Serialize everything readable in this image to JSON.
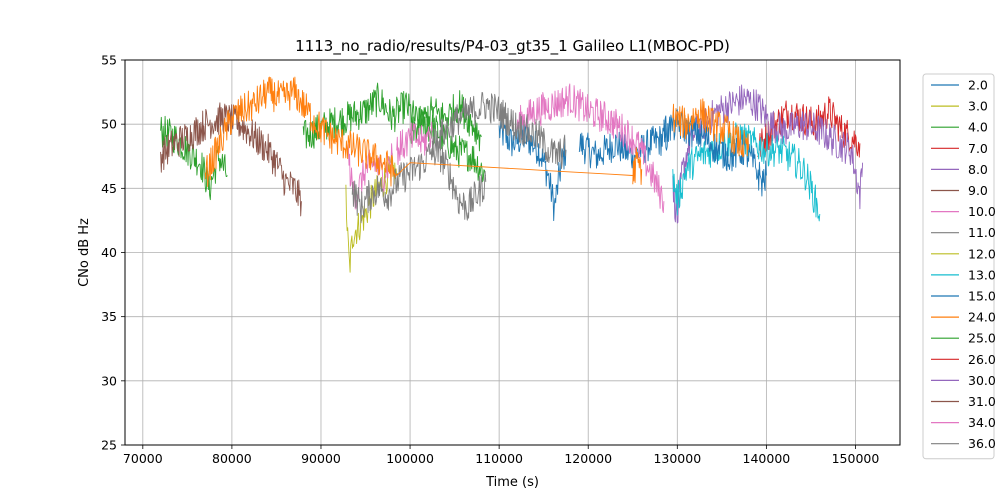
{
  "chart_data": {
    "type": "line",
    "title": "1113_no_radio/results/P4-03_gt35_1 Galileo L1(MBOC-PD)",
    "xlabel": "Time (s)",
    "ylabel": "CNo dB Hz",
    "xlim": [
      68000,
      155000
    ],
    "ylim": [
      25,
      55
    ],
    "xticks": [
      70000,
      80000,
      90000,
      100000,
      110000,
      120000,
      130000,
      140000,
      150000
    ],
    "yticks": [
      25,
      30,
      35,
      40,
      45,
      50,
      55
    ],
    "grid": true,
    "legend_position": "outside-right",
    "series": [
      {
        "name": "2.0",
        "color": "#1f77b4",
        "segments": [
          [
            [
              110000,
              49.5
            ],
            [
              111500,
              48.5
            ],
            [
              113000,
              49
            ],
            [
              114500,
              48
            ],
            [
              115500,
              46
            ],
            [
              116200,
              43.5
            ],
            [
              117000,
              47
            ],
            [
              117500,
              48
            ]
          ],
          [
            [
              119000,
              48.5
            ],
            [
              121000,
              47.5
            ],
            [
              123000,
              48.5
            ],
            [
              125000,
              47.5
            ],
            [
              127000,
              48.5
            ],
            [
              129000,
              49
            ]
          ]
        ]
      },
      {
        "name": "3.0",
        "color": "#bcbd22",
        "segments": [
          [
            [
              92800,
              44.5
            ],
            [
              93000,
              41
            ],
            [
              93200,
              38.8
            ],
            [
              93600,
              41.5
            ],
            [
              94200,
              42
            ],
            [
              95000,
              43
            ],
            [
              96000,
              44.5
            ],
            [
              97000,
              45.5
            ],
            [
              98000,
              46.5
            ],
            [
              98500,
              46
            ]
          ]
        ]
      },
      {
        "name": "4.0",
        "color": "#2ca02c",
        "segments": [
          [
            [
              72000,
              49.5
            ],
            [
              73500,
              49
            ],
            [
              75000,
              48
            ],
            [
              76500,
              47
            ],
            [
              77500,
              45
            ],
            [
              78500,
              47.5
            ],
            [
              79500,
              46
            ]
          ],
          [
            [
              88000,
              49
            ],
            [
              89500,
              49.5
            ],
            [
              91000,
              50
            ],
            [
              93000,
              50.5
            ],
            [
              95000,
              51
            ],
            [
              96500,
              52
            ],
            [
              98000,
              50.5
            ],
            [
              99500,
              51.5
            ],
            [
              101000,
              50
            ],
            [
              103000,
              49.5
            ],
            [
              105000,
              48
            ],
            [
              107000,
              47.5
            ],
            [
              108500,
              46
            ]
          ]
        ]
      },
      {
        "name": "7.0",
        "color": "#d62728",
        "segments": [
          [
            [
              139000,
              48
            ],
            [
              140000,
              49
            ],
            [
              141000,
              50
            ],
            [
              142500,
              51
            ],
            [
              144000,
              50.5
            ],
            [
              145500,
              50
            ],
            [
              147000,
              51
            ],
            [
              148500,
              49.5
            ],
            [
              149500,
              49
            ],
            [
              150500,
              48.5
            ]
          ]
        ]
      },
      {
        "name": "8.0",
        "color": "#9467bd",
        "segments": [
          [
            [
              129500,
              45
            ],
            [
              130000,
              42.5
            ],
            [
              130500,
              46
            ],
            [
              131500,
              49
            ],
            [
              133000,
              50
            ],
            [
              134500,
              51
            ],
            [
              136000,
              51.5
            ],
            [
              137500,
              52
            ],
            [
              139000,
              51.5
            ],
            [
              140500,
              50
            ],
            [
              142000,
              49.5
            ],
            [
              144000,
              50
            ],
            [
              146000,
              49.5
            ],
            [
              148000,
              48.5
            ],
            [
              149500,
              48
            ],
            [
              150500,
              44.5
            ],
            [
              150800,
              47
            ]
          ]
        ]
      },
      {
        "name": "9.0",
        "color": "#8c564b",
        "segments": [
          [
            [
              72000,
              47.5
            ],
            [
              73500,
              48.5
            ],
            [
              75000,
              49
            ],
            [
              77000,
              50
            ],
            [
              79000,
              50.5
            ],
            [
              81000,
              50
            ],
            [
              82500,
              49
            ],
            [
              84000,
              48
            ],
            [
              85000,
              47
            ],
            [
              86000,
              45.5
            ],
            [
              87000,
              45
            ],
            [
              87800,
              44
            ]
          ]
        ]
      },
      {
        "name": "10.0",
        "color": "#e377c2",
        "segments": [
          [
            [
              93000,
              48
            ],
            [
              93500,
              45
            ],
            [
              94000,
              44.5
            ],
            [
              95000,
              46.5
            ],
            [
              96000,
              47
            ],
            [
              97000,
              46
            ],
            [
              98000,
              47.5
            ]
          ],
          [
            [
              112000,
              50
            ],
            [
              114000,
              51
            ],
            [
              116000,
              51.5
            ],
            [
              118000,
              52
            ],
            [
              120000,
              51
            ],
            [
              122000,
              50.5
            ],
            [
              124000,
              49.5
            ],
            [
              125500,
              48.5
            ],
            [
              126500,
              47
            ],
            [
              127500,
              45.5
            ],
            [
              128500,
              44
            ]
          ]
        ]
      },
      {
        "name": "11.0",
        "color": "#7f7f7f",
        "segments": [
          [
            [
              93500,
              45
            ],
            [
              94500,
              43.5
            ],
            [
              95500,
              44.5
            ],
            [
              96500,
              45
            ],
            [
              97500,
              44.5
            ],
            [
              98500,
              45.5
            ],
            [
              99500,
              46
            ],
            [
              100500,
              46.5
            ],
            [
              101500,
              47
            ],
            [
              102500,
              48
            ],
            [
              103500,
              47.5
            ],
            [
              104500,
              46
            ],
            [
              105500,
              44
            ],
            [
              106500,
              43.5
            ],
            [
              107500,
              44.5
            ],
            [
              108500,
              45.5
            ]
          ]
        ]
      },
      {
        "name": "12.0",
        "color": "#bcbd22",
        "segments": []
      },
      {
        "name": "13.0",
        "color": "#17becf",
        "segments": [
          [
            [
              129500,
              46
            ],
            [
              130000,
              44
            ],
            [
              131000,
              46.5
            ],
            [
              132500,
              47.5
            ],
            [
              134000,
              48
            ],
            [
              135500,
              48.5
            ],
            [
              137000,
              49
            ],
            [
              138500,
              48.5
            ],
            [
              140000,
              48
            ],
            [
              141500,
              48
            ],
            [
              142500,
              47.5
            ],
            [
              143500,
              47
            ],
            [
              144500,
              46
            ],
            [
              145500,
              44
            ],
            [
              146000,
              43
            ]
          ]
        ]
      },
      {
        "name": "15.0",
        "color": "#1f77b4",
        "segments": [
          [
            [
              128500,
              49.5
            ],
            [
              130000,
              50
            ],
            [
              131500,
              49.5
            ],
            [
              133000,
              49
            ],
            [
              134500,
              48
            ],
            [
              136000,
              47.5
            ],
            [
              137500,
              48
            ],
            [
              138500,
              47
            ],
            [
              139500,
              45.5
            ],
            [
              140000,
              46
            ]
          ]
        ]
      },
      {
        "name": "24.0",
        "color": "#ff7f0e",
        "segments": [
          [
            [
              77000,
              46
            ],
            [
              78000,
              47.5
            ],
            [
              79000,
              49
            ],
            [
              80000,
              50.5
            ],
            [
              81000,
              51
            ],
            [
              82500,
              51.5
            ],
            [
              84000,
              52.5
            ],
            [
              85500,
              52
            ],
            [
              87000,
              52.5
            ],
            [
              88500,
              51
            ],
            [
              89500,
              50
            ],
            [
              91000,
              49
            ],
            [
              92500,
              48.5
            ],
            [
              94000,
              48
            ],
            [
              95500,
              47.5
            ],
            [
              97000,
              47
            ],
            [
              98500,
              46
            ]
          ],
          [
            [
              98500,
              46
            ],
            [
              100000,
              47
            ],
            [
              105000,
              46.8
            ],
            [
              110000,
              46.6
            ],
            [
              115000,
              46.4
            ],
            [
              120000,
              46.2
            ],
            [
              125000,
              46
            ]
          ],
          [
            [
              125000,
              46
            ],
            [
              125400,
              47
            ],
            [
              126000,
              46.5
            ]
          ],
          [
            [
              129500,
              50.5
            ],
            [
              131000,
              50
            ],
            [
              132500,
              51
            ],
            [
              134000,
              50
            ],
            [
              135500,
              49.5
            ],
            [
              137000,
              48.5
            ],
            [
              138000,
              48
            ]
          ]
        ]
      },
      {
        "name": "25.0",
        "color": "#2ca02c",
        "segments": [
          [
            [
              100000,
              49
            ],
            [
              101000,
              50
            ],
            [
              102500,
              51
            ],
            [
              104000,
              50.5
            ],
            [
              105500,
              51.5
            ],
            [
              107000,
              50
            ],
            [
              108000,
              49
            ]
          ]
        ]
      },
      {
        "name": "26.0",
        "color": "#d62728",
        "segments": []
      },
      {
        "name": "30.0",
        "color": "#9467bd",
        "segments": []
      },
      {
        "name": "31.0",
        "color": "#8c564b",
        "segments": []
      },
      {
        "name": "34.0",
        "color": "#e377c2",
        "segments": [
          [
            [
              98500,
              48
            ],
            [
              99500,
              48.5
            ],
            [
              100500,
              49
            ],
            [
              101500,
              48.5
            ],
            [
              102500,
              49.5
            ]
          ]
        ]
      },
      {
        "name": "36.0",
        "color": "#7f7f7f",
        "segments": [
          [
            [
              102500,
              48.5
            ],
            [
              104000,
              49.5
            ],
            [
              105500,
              50.5
            ],
            [
              107000,
              51
            ],
            [
              108500,
              51.5
            ],
            [
              110000,
              51
            ],
            [
              111500,
              50
            ],
            [
              113000,
              49.5
            ],
            [
              114500,
              49
            ],
            [
              115500,
              48
            ],
            [
              116500,
              47.5
            ],
            [
              117500,
              48
            ]
          ]
        ]
      }
    ]
  }
}
